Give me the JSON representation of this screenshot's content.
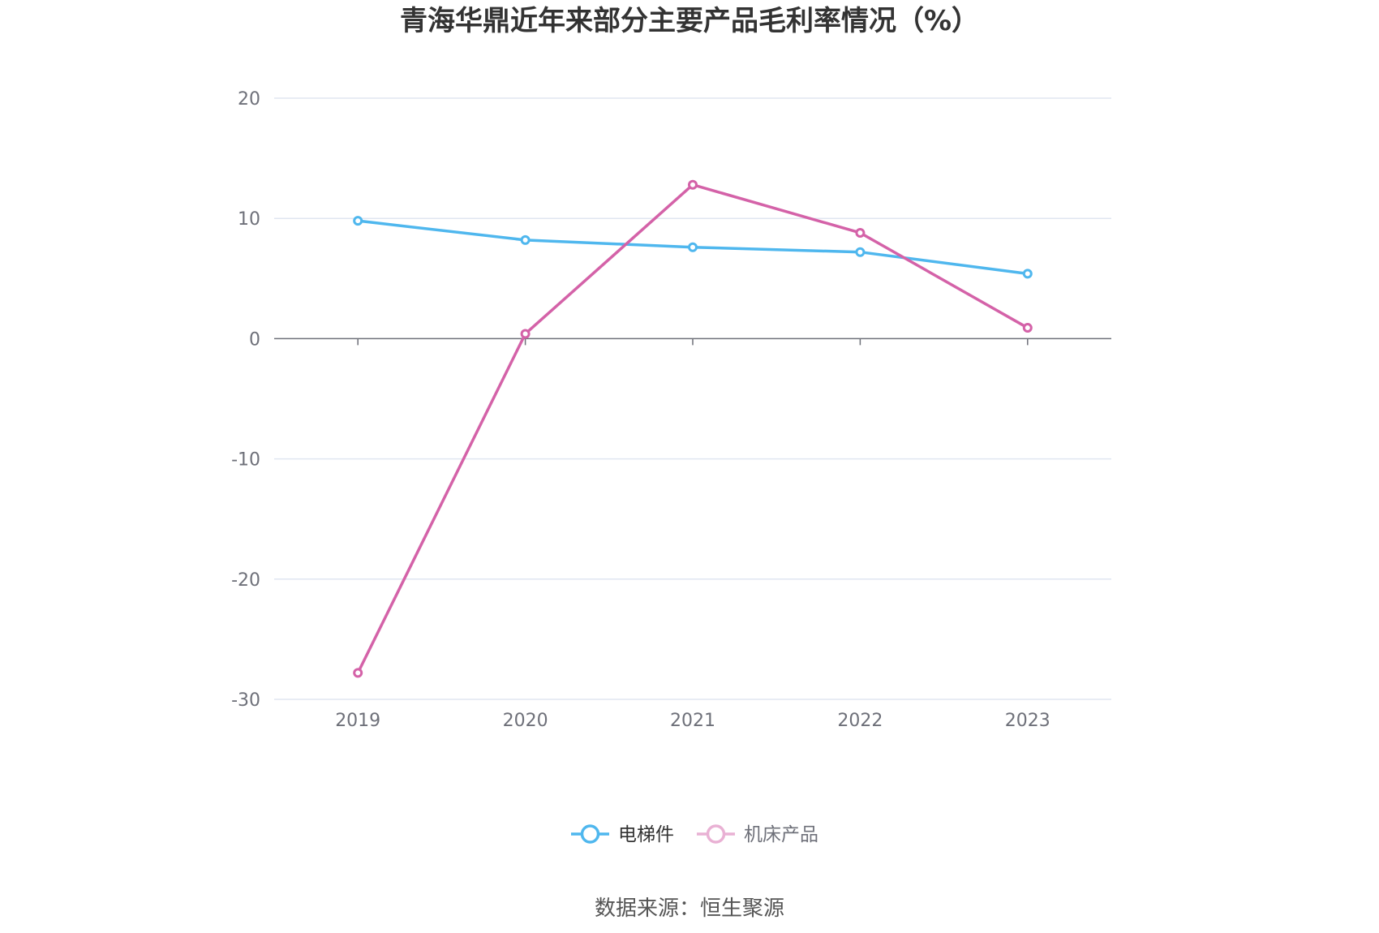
{
  "chart_data": {
    "type": "line",
    "title": "青海华鼎近年来部分主要产品毛利率情况（%）",
    "categories": [
      "2019",
      "2020",
      "2021",
      "2022",
      "2023"
    ],
    "ylim": [
      -30,
      20
    ],
    "yticks": [
      "20",
      "10",
      "0",
      "-10",
      "-20",
      "-30"
    ],
    "grid": true,
    "legend_position": "bottom",
    "series": [
      {
        "name": "电梯件",
        "color": "#4fb7ee",
        "values": [
          9.8,
          8.2,
          7.6,
          7.2,
          5.4
        ]
      },
      {
        "name": "机床产品",
        "color": "#d462a8",
        "legend_color": "#e9b1d4",
        "values": [
          -27.8,
          0.4,
          12.8,
          8.8,
          0.9
        ]
      }
    ],
    "source": "数据来源：恒生聚源"
  }
}
